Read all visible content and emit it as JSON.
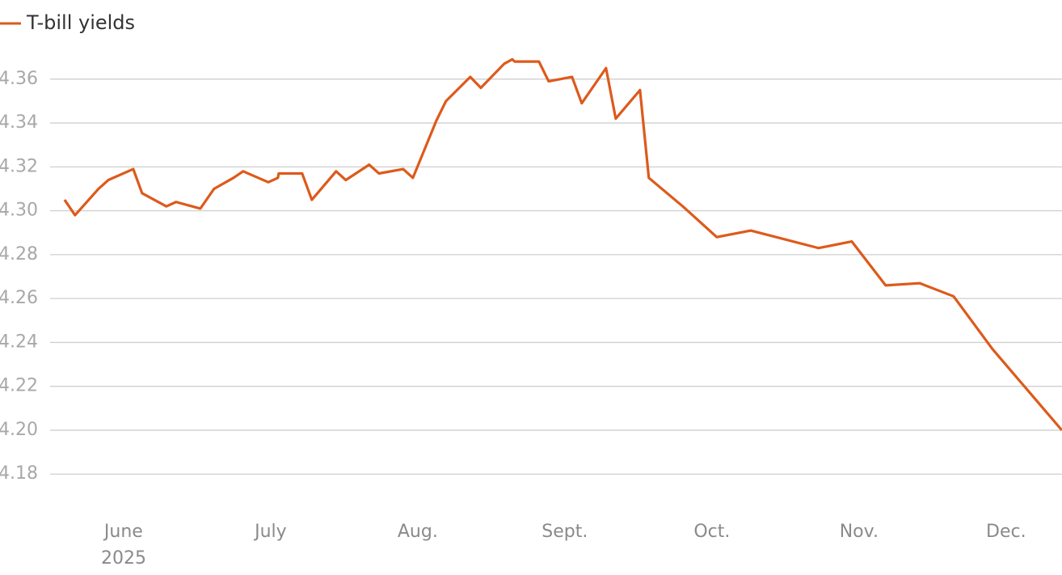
{
  "chart_data": {
    "type": "line",
    "x": [
      5.599,
      5.67,
      5.83,
      5.896,
      6.066,
      6.126,
      6.291,
      6.357,
      6.522,
      6.615,
      6.747,
      6.813,
      6.984,
      7.049,
      7.055,
      7.214,
      7.28,
      7.445,
      7.511,
      7.67,
      7.736,
      7.901,
      7.967,
      8.126,
      8.192,
      8.357,
      8.429,
      8.588,
      8.643,
      8.659,
      8.824,
      8.89,
      9.049,
      9.115,
      9.28,
      9.346,
      9.511,
      9.571,
      9.802,
      10.033,
      10.264,
      10.725,
      10.951,
      11.181,
      11.412,
      11.643,
      11.907,
      12.379
    ],
    "series": [
      {
        "name": "T-bill yields",
        "color": "#dd5a1b",
        "values": [
          4.305,
          4.298,
          4.31,
          4.314,
          4.319,
          4.308,
          4.302,
          4.304,
          4.301,
          4.31,
          4.315,
          4.318,
          4.313,
          4.315,
          4.317,
          4.317,
          4.305,
          4.318,
          4.314,
          4.321,
          4.317,
          4.319,
          4.315,
          4.341,
          4.35,
          4.361,
          4.356,
          4.367,
          4.369,
          4.368,
          4.368,
          4.359,
          4.361,
          4.349,
          4.365,
          4.342,
          4.355,
          4.315,
          4.302,
          4.288,
          4.291,
          4.283,
          4.286,
          4.266,
          4.267,
          4.261,
          4.237,
          4.2
        ]
      }
    ],
    "xlim": [
      5.16,
      12.38
    ],
    "xticks": [
      {
        "value": 6,
        "label": "June"
      },
      {
        "value": 7,
        "label": "July"
      },
      {
        "value": 8,
        "label": "Aug."
      },
      {
        "value": 9,
        "label": "Sept."
      },
      {
        "value": 10,
        "label": "Oct."
      },
      {
        "value": 11,
        "label": "Nov."
      },
      {
        "value": 12,
        "label": "Dec."
      }
    ],
    "xtick_year": "2025",
    "ylim": [
      4.1705,
      4.3753
    ],
    "yticks": [
      4.18,
      {
        "value": 4.2,
        "label": "4.20"
      },
      4.22,
      4.24,
      4.26,
      4.28,
      {
        "value": 4.3,
        "label": "4.30"
      },
      4.32,
      4.34,
      4.36
    ],
    "grid": true
  }
}
